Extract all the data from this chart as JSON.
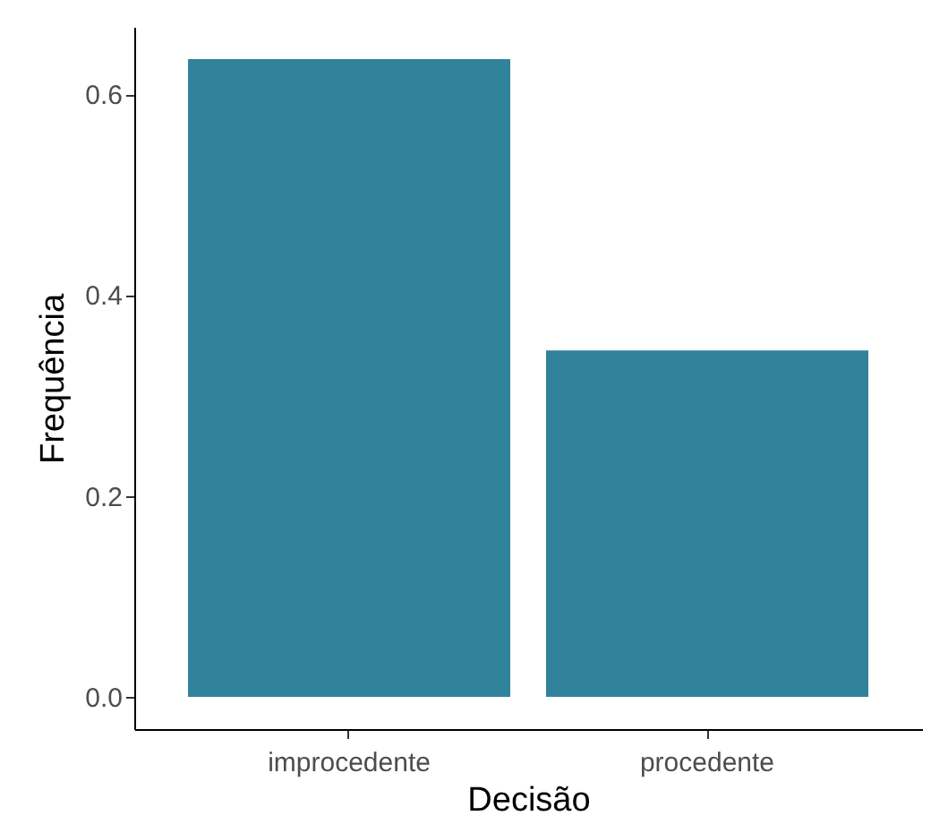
{
  "chart_data": {
    "type": "bar",
    "xlabel": "Decisão",
    "ylabel": "Frequência",
    "categories": [
      "improcedente",
      "procedente"
    ],
    "values": [
      0.635,
      0.345
    ],
    "color": "#31839b",
    "ylim": [
      -0.032,
      0.667
    ],
    "yticks": [
      {
        "value": 0,
        "label": "0.0"
      },
      0.2,
      0.4,
      0.6
    ],
    "grid": false
  }
}
